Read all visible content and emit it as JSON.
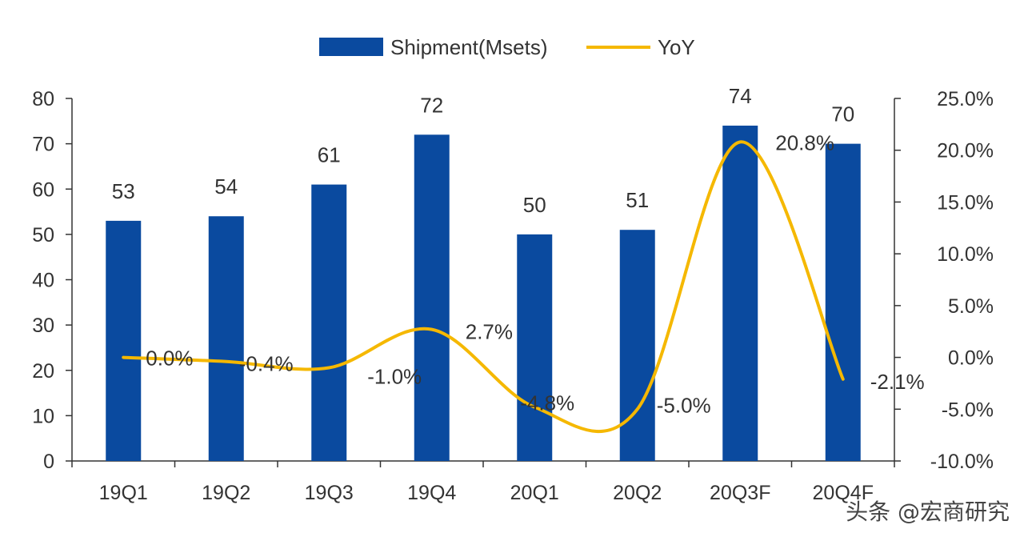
{
  "chart_data": {
    "type": "bar+line",
    "categories": [
      "19Q1",
      "19Q2",
      "19Q3",
      "19Q4",
      "20Q1",
      "20Q2",
      "20Q3F",
      "20Q4F"
    ],
    "series": [
      {
        "name": "Shipment(Msets)",
        "type": "bar",
        "axis": "left",
        "color": "#0a4a9f",
        "values": [
          53,
          54,
          61,
          72,
          50,
          51,
          74,
          70
        ],
        "labels": [
          "53",
          "54",
          "61",
          "72",
          "50",
          "51",
          "74",
          "70"
        ]
      },
      {
        "name": "YoY",
        "type": "line",
        "axis": "right",
        "color": "#f5b800",
        "values": [
          0.0,
          -0.4,
          -1.0,
          2.7,
          -4.8,
          -5.0,
          20.8,
          -2.1
        ],
        "labels": [
          "0.0%",
          "-0.4%",
          "-1.0%",
          "2.7%",
          "-4.8%",
          "-5.0%",
          "20.8%",
          "-2.1%"
        ]
      }
    ],
    "left_axis": {
      "min": 0,
      "max": 80,
      "step": 10,
      "tick_labels": [
        "0",
        "10",
        "20",
        "30",
        "40",
        "50",
        "60",
        "70",
        "80"
      ]
    },
    "right_axis": {
      "min": -10,
      "max": 25,
      "step": 5,
      "tick_labels": [
        "-10.0%",
        "-5.0%",
        "0.0%",
        "5.0%",
        "10.0%",
        "15.0%",
        "20.0%",
        "25.0%"
      ]
    },
    "legend_position": "top-center",
    "grid": false
  },
  "watermark": "头条 @宏商研究"
}
